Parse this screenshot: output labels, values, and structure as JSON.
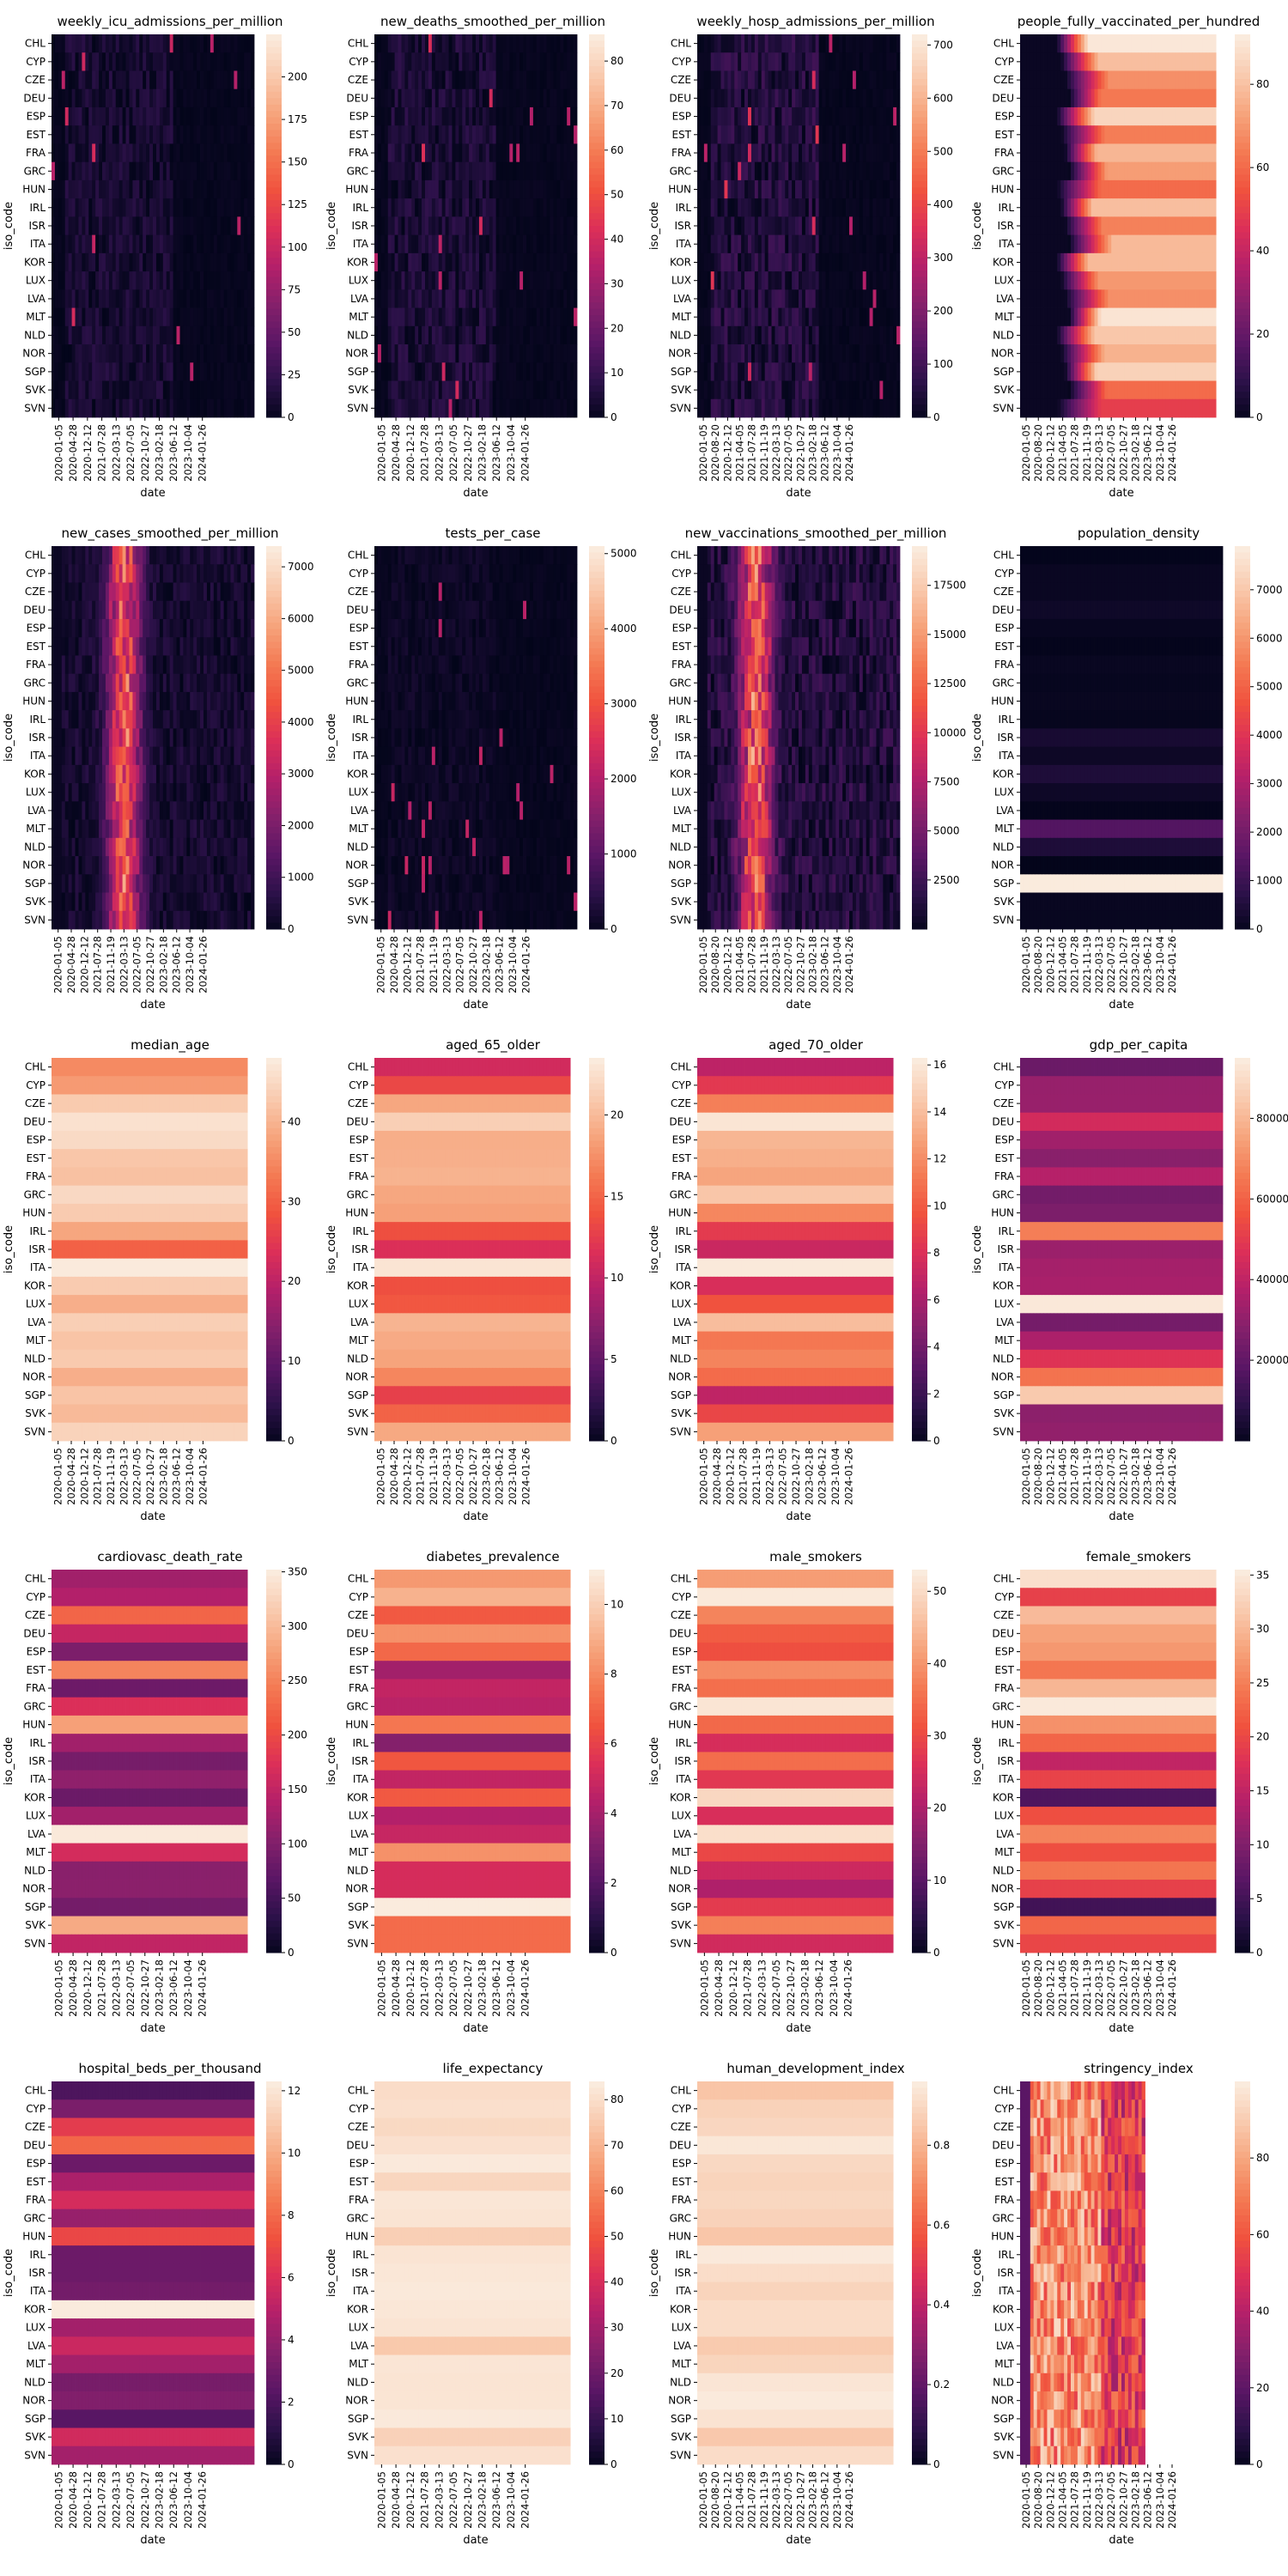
{
  "figure": {
    "type": "heatmap-grid",
    "rows": 5,
    "cols": 4
  },
  "chart_data": [
    {
      "type": "heatmap",
      "title": "weekly_icu_admissions_per_million",
      "xlabel": "date",
      "ylabel": "iso_code",
      "cbar_ticks": [
        0,
        25,
        50,
        75,
        100,
        125,
        150,
        175,
        200
      ],
      "cbar_range": [
        0,
        225
      ],
      "pattern": "sparse",
      "intensity": 0.06,
      "fill_start": 0.0,
      "fill_end": 1.0
    },
    {
      "type": "heatmap",
      "title": "new_deaths_smoothed_per_million",
      "xlabel": "date",
      "ylabel": "iso_code",
      "cbar_ticks": [
        0,
        10,
        20,
        30,
        40,
        50,
        60,
        70,
        80
      ],
      "cbar_range": [
        0,
        86
      ],
      "pattern": "sparse",
      "intensity": 0.07,
      "fill_start": 0.0,
      "fill_end": 1.0
    },
    {
      "type": "heatmap",
      "title": "weekly_hosp_admissions_per_million",
      "xlabel": "date",
      "ylabel": "iso_code",
      "cbar_ticks": [
        0,
        100,
        200,
        300,
        400,
        500,
        600,
        700
      ],
      "cbar_range": [
        0,
        720
      ],
      "pattern": "sparse",
      "intensity": 0.09,
      "fill_start": 0.0,
      "fill_end": 1.0
    },
    {
      "type": "heatmap",
      "title": "people_fully_vaccinated_per_hundred",
      "xlabel": "date",
      "ylabel": "iso_code",
      "cbar_ticks": [
        0,
        20,
        40,
        60,
        80
      ],
      "cbar_range": [
        0,
        92
      ],
      "pattern": "ramp",
      "row_values": [
        91,
        80,
        69,
        64,
        86,
        65,
        78,
        72,
        61,
        80,
        66,
        79,
        79,
        71,
        69,
        90,
        82,
        77,
        85,
        61,
        50
      ],
      "fill_start": 0.0,
      "fill_end": 0.96
    },
    {
      "type": "heatmap",
      "title": "new_cases_smoothed_per_million",
      "xlabel": "date",
      "ylabel": "iso_code",
      "cbar_ticks": [
        0,
        1000,
        2000,
        3000,
        4000,
        5000,
        6000,
        7000
      ],
      "cbar_range": [
        0,
        7400
      ],
      "pattern": "wave",
      "peak_pos": 0.35,
      "intensity": 0.18,
      "fill_start": 0.0,
      "fill_end": 1.0
    },
    {
      "type": "heatmap",
      "title": "tests_per_case",
      "xlabel": "date",
      "ylabel": "iso_code",
      "cbar_ticks": [
        0,
        1000,
        2000,
        3000,
        4000,
        5000
      ],
      "cbar_range": [
        0,
        5100
      ],
      "pattern": "sparse",
      "intensity": 0.03,
      "fill_start": 0.0,
      "fill_end": 1.0
    },
    {
      "type": "heatmap",
      "title": "new_vaccinations_smoothed_per_million",
      "xlabel": "date",
      "ylabel": "iso_code",
      "cbar_ticks": [
        2500,
        5000,
        7500,
        10000,
        12500,
        15000,
        17500
      ],
      "cbar_range": [
        0,
        19500
      ],
      "pattern": "wave",
      "peak_pos": 0.28,
      "intensity": 0.3,
      "fill_start": 0.0,
      "fill_end": 1.0
    },
    {
      "type": "heatmap",
      "title": "population_density",
      "xlabel": "date",
      "ylabel": "iso_code",
      "cbar_ticks": [
        0,
        1000,
        2000,
        3000,
        4000,
        5000,
        6000,
        7000
      ],
      "cbar_range": [
        0,
        7900
      ],
      "pattern": "const",
      "row_values": [
        26,
        131,
        137,
        240,
        94,
        32,
        123,
        83,
        107,
        70,
        400,
        206,
        528,
        214,
        31,
        1454,
        522,
        16,
        7916,
        113,
        103
      ],
      "fill_start": 0.0,
      "fill_end": 1.0
    },
    {
      "type": "heatmap",
      "title": "median_age",
      "xlabel": "date",
      "ylabel": "iso_code",
      "cbar_ticks": [
        0,
        10,
        20,
        30,
        40
      ],
      "cbar_range": [
        0,
        48
      ],
      "pattern": "const",
      "row_values": [
        35.4,
        37.3,
        43.3,
        46.6,
        45.5,
        42.7,
        42.0,
        45.3,
        43.4,
        38.7,
        30.6,
        47.9,
        43.4,
        39.7,
        43.9,
        42.4,
        43.2,
        39.7,
        42.4,
        41.2,
        44.5
      ],
      "fill_start": 0.0,
      "fill_end": 0.965
    },
    {
      "type": "heatmap",
      "title": "aged_65_older",
      "xlabel": "date",
      "ylabel": "iso_code",
      "cbar_ticks": [
        0,
        5,
        10,
        15,
        20
      ],
      "cbar_range": [
        0,
        23.5
      ],
      "pattern": "const",
      "row_values": [
        11.1,
        13.4,
        19.0,
        21.5,
        19.4,
        19.5,
        19.7,
        19.0,
        18.6,
        13.9,
        11.7,
        23.0,
        13.9,
        14.4,
        19.8,
        19.2,
        18.8,
        17.1,
        12.9,
        15.1,
        19.1
      ],
      "fill_start": 0.0,
      "fill_end": 0.965
    },
    {
      "type": "heatmap",
      "title": "aged_70_older",
      "xlabel": "date",
      "ylabel": "iso_code",
      "cbar_ticks": [
        0,
        2,
        4,
        6,
        8,
        10,
        12,
        14,
        16
      ],
      "cbar_range": [
        0,
        16.3
      ],
      "pattern": "const",
      "row_values": [
        6.9,
        8.6,
        11.6,
        16.0,
        13.8,
        13.5,
        13.1,
        14.5,
        11.9,
        8.7,
        7.4,
        16.2,
        8.0,
        9.8,
        14.1,
        11.3,
        11.8,
        10.8,
        7.0,
        9.2,
        12.9
      ],
      "fill_start": 0.0,
      "fill_end": 0.965
    },
    {
      "type": "heatmap",
      "title": "gdp_per_capita",
      "xlabel": "date",
      "ylabel": "iso_code",
      "cbar_ticks": [
        20000,
        40000,
        60000,
        80000
      ],
      "cbar_range": [
        0,
        95000
      ],
      "pattern": "const",
      "row_values": [
        22767,
        32415,
        32606,
        45229,
        34272,
        29481,
        38606,
        24574,
        26778,
        67335,
        33132,
        35220,
        35938,
        94278,
        25064,
        36513,
        48473,
        64800,
        85535,
        30155,
        31401
      ],
      "fill_start": 0.0,
      "fill_end": 1.0
    },
    {
      "type": "heatmap",
      "title": "cardiovasc_death_rate",
      "xlabel": "date",
      "ylabel": "iso_code",
      "cbar_ticks": [
        0,
        50,
        100,
        150,
        200,
        250,
        300,
        350
      ],
      "cbar_range": [
        0,
        352
      ],
      "pattern": "const",
      "row_values": [
        127,
        141,
        228,
        156,
        99,
        255,
        86,
        175,
        278,
        127,
        94,
        114,
        85,
        128,
        350,
        168,
        109,
        111,
        92,
        287,
        153
      ],
      "fill_start": 0.0,
      "fill_end": 0.965
    },
    {
      "type": "heatmap",
      "title": "diabetes_prevalence",
      "xlabel": "date",
      "ylabel": "iso_code",
      "cbar_ticks": [
        0,
        2,
        4,
        6,
        8,
        10
      ],
      "cbar_range": [
        0,
        11
      ],
      "pattern": "const",
      "row_values": [
        8.5,
        9.2,
        6.8,
        8.3,
        7.2,
        4.0,
        4.8,
        4.6,
        7.6,
        3.3,
        6.7,
        4.8,
        6.8,
        4.4,
        4.9,
        8.3,
        5.3,
        5.3,
        11.0,
        7.3,
        7.3
      ],
      "fill_start": 0.0,
      "fill_end": 0.965
    },
    {
      "type": "heatmap",
      "title": "male_smokers",
      "xlabel": "date",
      "ylabel": "iso_code",
      "cbar_ticks": [
        0,
        10,
        20,
        30,
        40,
        50
      ],
      "cbar_range": [
        0,
        53
      ],
      "pattern": "const",
      "row_values": [
        41.5,
        52.7,
        38.3,
        33.1,
        31.4,
        39.3,
        35.6,
        52.0,
        34.8,
        25.7,
        35.4,
        27.8,
        49.8,
        26.0,
        51.0,
        30.2,
        24.4,
        20.7,
        28.3,
        37.7,
        25.0
      ],
      "fill_start": 0.0,
      "fill_end": 0.965
    },
    {
      "type": "heatmap",
      "title": "female_smokers",
      "xlabel": "date",
      "ylabel": "iso_code",
      "cbar_ticks": [
        0,
        5,
        10,
        15,
        20,
        25,
        30,
        35
      ],
      "cbar_range": [
        0,
        35.5
      ],
      "pattern": "const",
      "row_values": [
        34.2,
        19.6,
        30.5,
        28.2,
        27.4,
        24.5,
        30.1,
        35.3,
        26.8,
        23.0,
        15.4,
        19.8,
        6.2,
        20.9,
        25.6,
        20.9,
        24.4,
        19.6,
        5.2,
        23.1,
        20.1
      ],
      "fill_start": 0.0,
      "fill_end": 0.965
    },
    {
      "type": "heatmap",
      "title": "hospital_beds_per_thousand",
      "xlabel": "date",
      "ylabel": "iso_code",
      "cbar_ticks": [
        0,
        2,
        4,
        6,
        8,
        10,
        12
      ],
      "cbar_range": [
        0,
        12.3
      ],
      "pattern": "const",
      "row_values": [
        2.1,
        3.4,
        6.6,
        8.0,
        3.0,
        4.7,
        5.9,
        4.2,
        7.0,
        3.0,
        3.0,
        3.2,
        12.3,
        4.5,
        5.6,
        4.5,
        3.3,
        3.6,
        2.4,
        5.8,
        4.5
      ],
      "fill_start": 0.0,
      "fill_end": 1.0
    },
    {
      "type": "heatmap",
      "title": "life_expectancy",
      "xlabel": "date",
      "ylabel": "iso_code",
      "cbar_ticks": [
        0,
        10,
        20,
        30,
        40,
        50,
        60,
        70,
        80
      ],
      "cbar_range": [
        0,
        84
      ],
      "pattern": "const",
      "row_values": [
        80.2,
        80.9,
        79.4,
        81.3,
        83.6,
        78.7,
        82.7,
        82.2,
        76.9,
        82.3,
        83.0,
        83.5,
        83.0,
        82.3,
        75.3,
        82.5,
        82.3,
        82.4,
        83.6,
        77.5,
        81.3
      ],
      "fill_start": 0.0,
      "fill_end": 0.965
    },
    {
      "type": "heatmap",
      "title": "human_development_index",
      "xlabel": "date",
      "ylabel": "iso_code",
      "cbar_ticks": [
        0.0,
        0.2,
        0.4,
        0.6,
        0.8
      ],
      "cbar_range": [
        0,
        0.96
      ],
      "pattern": "const",
      "row_values": [
        0.851,
        0.887,
        0.9,
        0.947,
        0.904,
        0.892,
        0.901,
        0.888,
        0.854,
        0.955,
        0.919,
        0.892,
        0.916,
        0.916,
        0.866,
        0.895,
        0.944,
        0.957,
        0.938,
        0.86,
        0.917
      ],
      "fill_start": 0.0,
      "fill_end": 0.965
    },
    {
      "type": "heatmap",
      "title": "stringency_index",
      "xlabel": "date",
      "ylabel": "iso_code",
      "cbar_ticks": [
        0,
        20,
        40,
        60,
        80
      ],
      "cbar_range": [
        0,
        100
      ],
      "pattern": "stringency",
      "fill_start": 0.0,
      "fill_end": 0.62
    }
  ],
  "shared": {
    "y_categories": [
      "CHL",
      "CYP",
      "CZE",
      "DEU",
      "ESP",
      "EST",
      "FRA",
      "GRC",
      "HUN",
      "IRL",
      "ISR",
      "ITA",
      "KOR",
      "LUX",
      "LVA",
      "MLT",
      "NLD",
      "NOR",
      "SGP",
      "SVK",
      "SVN"
    ],
    "x_ticks_a": [
      "2020-01-05",
      "2020-04-28",
      "2020-12-12",
      "2021-07-28",
      "2022-03-13",
      "2022-07-05",
      "2022-10-27",
      "2023-02-18",
      "2023-06-12",
      "2023-10-04",
      "2024-01-26"
    ],
    "x_ticks_b": [
      "2020-01-05",
      "2020-04-28",
      "2020-12-12",
      "2021-07-28",
      "2021-11-19",
      "2022-03-13",
      "2022-07-05",
      "2022-10-27",
      "2023-02-18",
      "2023-06-12",
      "2023-10-04",
      "2024-01-26"
    ],
    "x_ticks_c": [
      "2020-01-05",
      "2020-08-20",
      "2020-12-12",
      "2021-04-05",
      "2021-07-28",
      "2021-11-19",
      "2022-03-13",
      "2022-07-05",
      "2022-10-27",
      "2023-02-18",
      "2023-06-12",
      "2023-10-04",
      "2024-01-26"
    ]
  },
  "colormap": {
    "name": "rocket",
    "stops": [
      "#03051a",
      "#2c1149",
      "#5a1665",
      "#84206b",
      "#b3206a",
      "#dc2f58",
      "#f0523e",
      "#f47a53",
      "#f6a47c",
      "#f9caae",
      "#faebdd"
    ]
  }
}
